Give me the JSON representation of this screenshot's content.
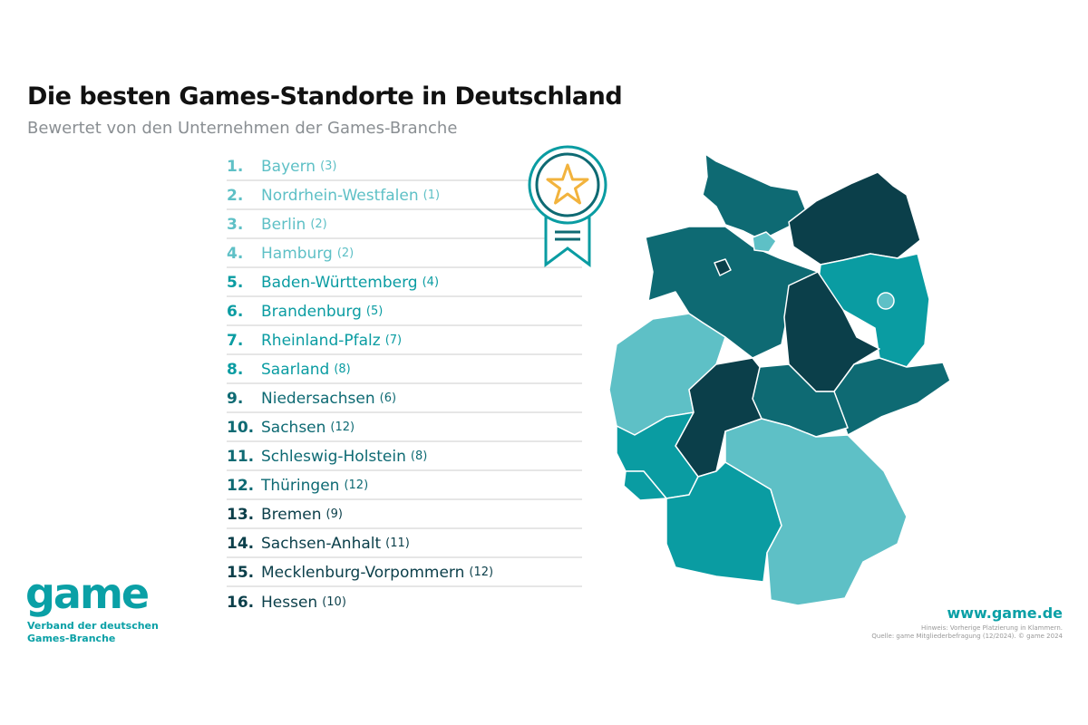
{
  "title": "Die besten Games-Standorte in Deutschland",
  "subtitle": "Bewertet von den Unternehmen der Games-Branche",
  "ranking": [
    {
      "rank": "1.",
      "state": "Bayern",
      "previous": "(3)",
      "tier": 1
    },
    {
      "rank": "2.",
      "state": "Nordrhein-Westfalen",
      "previous": "(1)",
      "tier": 1
    },
    {
      "rank": "3.",
      "state": "Berlin",
      "previous": "(2)",
      "tier": 1
    },
    {
      "rank": "4.",
      "state": "Hamburg",
      "previous": "(2)",
      "tier": 1
    },
    {
      "rank": "5.",
      "state": "Baden-Württemberg",
      "previous": "(4)",
      "tier": 2
    },
    {
      "rank": "6.",
      "state": "Brandenburg",
      "previous": "(5)",
      "tier": 2
    },
    {
      "rank": "7.",
      "state": "Rheinland-Pfalz",
      "previous": "(7)",
      "tier": 2
    },
    {
      "rank": "8.",
      "state": "Saarland",
      "previous": "(8)",
      "tier": 2
    },
    {
      "rank": "9.",
      "state": "Niedersachsen",
      "previous": "(6)",
      "tier": 3
    },
    {
      "rank": "10.",
      "state": "Sachsen",
      "previous": "(12)",
      "tier": 3
    },
    {
      "rank": "11.",
      "state": "Schleswig-Holstein",
      "previous": "(8)",
      "tier": 3
    },
    {
      "rank": "12.",
      "state": "Thüringen",
      "previous": "(12)",
      "tier": 3
    },
    {
      "rank": "13.",
      "state": "Bremen",
      "previous": "(9)",
      "tier": 4
    },
    {
      "rank": "14.",
      "state": "Sachsen-Anhalt",
      "previous": "(11)",
      "tier": 4
    },
    {
      "rank": "15.",
      "state": "Mecklenburg-Vorpommern",
      "previous": "(12)",
      "tier": 4
    },
    {
      "rank": "16.",
      "state": "Hessen",
      "previous": "(10)",
      "tier": 4
    }
  ],
  "colors": {
    "tier1": "#5ec0c6",
    "tier2": "#0a9ca2",
    "tier3": "#0e6a73",
    "tier4": "#0b3f4a",
    "star": "#f2b33d"
  },
  "logo": {
    "word": "game",
    "tagline_1": "Verband der deutschen",
    "tagline_2": "Games-Branche"
  },
  "url": "www.game.de",
  "note_1": "Hinweis: Vorherige Platzierung in Klammern.",
  "note_2": "Quelle: game Mitgliederbefragung (12/2024). © game 2024"
}
